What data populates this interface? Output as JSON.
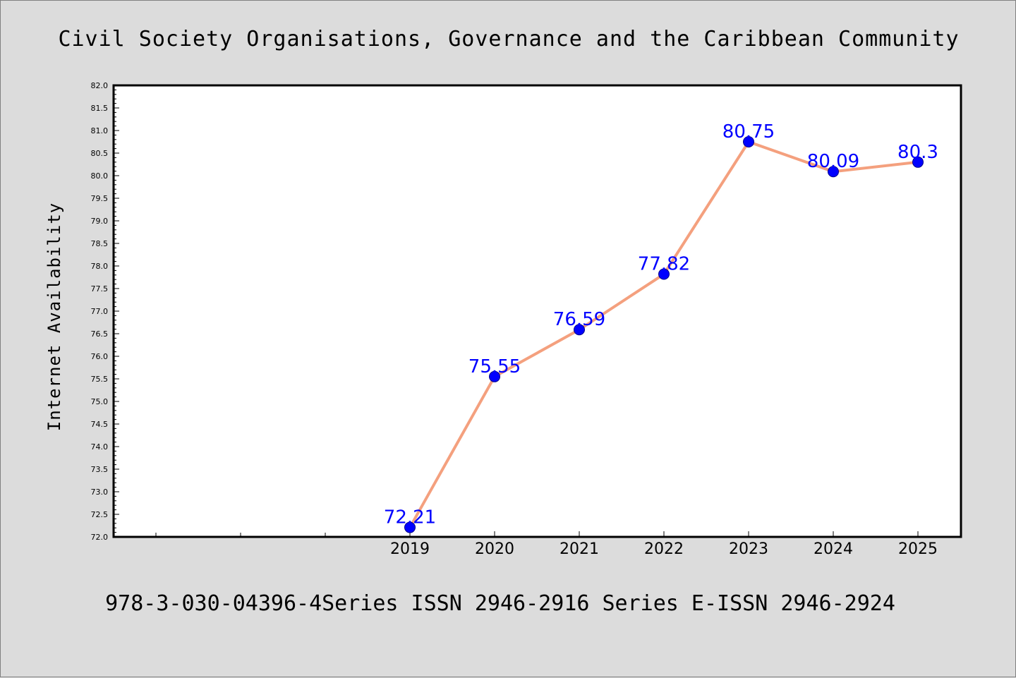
{
  "chart_data": {
    "type": "line",
    "title": "Civil Society Organisations, Governance and the Caribbean Community",
    "ylabel": "Internet Availability",
    "xlabel": "",
    "footer": "978-3-030-04396-4Series ISSN 2946-2916 Series E-ISSN 2946-2924",
    "x": [
      "2019",
      "2020",
      "2021",
      "2022",
      "2023",
      "2024",
      "2025"
    ],
    "series": [
      {
        "values": [
          72.21,
          75.55,
          76.59,
          77.82,
          80.75,
          80.09,
          80.3
        ]
      }
    ],
    "data_labels": [
      "72.21",
      "75.55",
      "76.59",
      "77.82",
      "80.75",
      "80.09",
      "80.3"
    ],
    "ylim": [
      72.0,
      82.0
    ],
    "ytick_labels": [
      "72.0",
      "72.5",
      "73.0",
      "73.5",
      "74.0",
      "74.5",
      "75.0",
      "75.5",
      "76.0",
      "76.5",
      "77.0",
      "77.5",
      "78.0",
      "78.5",
      "79.0",
      "79.5",
      "80.0",
      "80.5",
      "81.0",
      "81.5",
      "82.0"
    ],
    "grid": false,
    "line_color": "#f4a07e",
    "marker_color": "#0000ff",
    "label_color": "#0000ff",
    "background_color": "#dcdcdc",
    "plot_background": "#ffffff"
  }
}
